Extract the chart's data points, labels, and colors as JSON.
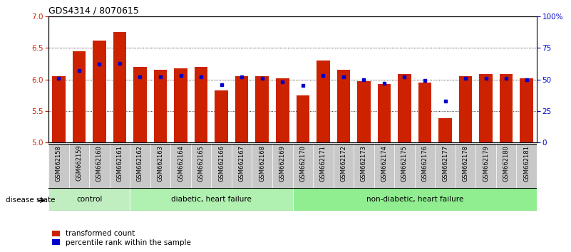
{
  "title": "GDS4314 / 8070615",
  "samples": [
    "GSM662158",
    "GSM662159",
    "GSM662160",
    "GSM662161",
    "GSM662162",
    "GSM662163",
    "GSM662164",
    "GSM662165",
    "GSM662166",
    "GSM662167",
    "GSM662168",
    "GSM662169",
    "GSM662170",
    "GSM662171",
    "GSM662172",
    "GSM662173",
    "GSM662174",
    "GSM662175",
    "GSM662176",
    "GSM662177",
    "GSM662178",
    "GSM662179",
    "GSM662180",
    "GSM662181"
  ],
  "red_values": [
    6.05,
    6.45,
    6.62,
    6.75,
    6.2,
    6.15,
    6.18,
    6.2,
    5.82,
    6.05,
    6.05,
    6.02,
    5.75,
    6.3,
    6.15,
    5.97,
    5.93,
    6.08,
    5.95,
    5.38,
    6.05,
    6.08,
    6.08,
    6.02
  ],
  "blue_values": [
    51,
    57,
    62,
    63,
    52,
    52,
    53,
    52,
    46,
    52,
    51,
    48,
    45,
    53,
    52,
    50,
    47,
    52,
    49,
    33,
    51,
    51,
    51,
    50
  ],
  "group_labels": [
    "control",
    "diabetic, heart failure",
    "non-diabetic, heart failure"
  ],
  "group_starts": [
    0,
    4,
    12
  ],
  "group_ends": [
    4,
    12,
    24
  ],
  "group_colors": [
    "#c0eec0",
    "#b0f0b0",
    "#90ee90"
  ],
  "ylim_left": [
    5.0,
    7.0
  ],
  "ylim_right": [
    0,
    100
  ],
  "yticks_left": [
    5.0,
    5.5,
    6.0,
    6.5,
    7.0
  ],
  "yticks_right": [
    0,
    25,
    50,
    75,
    100
  ],
  "yticklabels_right": [
    "0",
    "25",
    "50",
    "75",
    "100%"
  ],
  "bar_color": "#cc2200",
  "blue_color": "#0000cc",
  "grid_color": "#000000",
  "tick_label_color_left": "#cc2200",
  "tick_label_color_right": "#0000cc",
  "legend_red": "transformed count",
  "legend_blue": "percentile rank within the sample",
  "disease_state_label": "disease state",
  "bar_width": 0.65
}
